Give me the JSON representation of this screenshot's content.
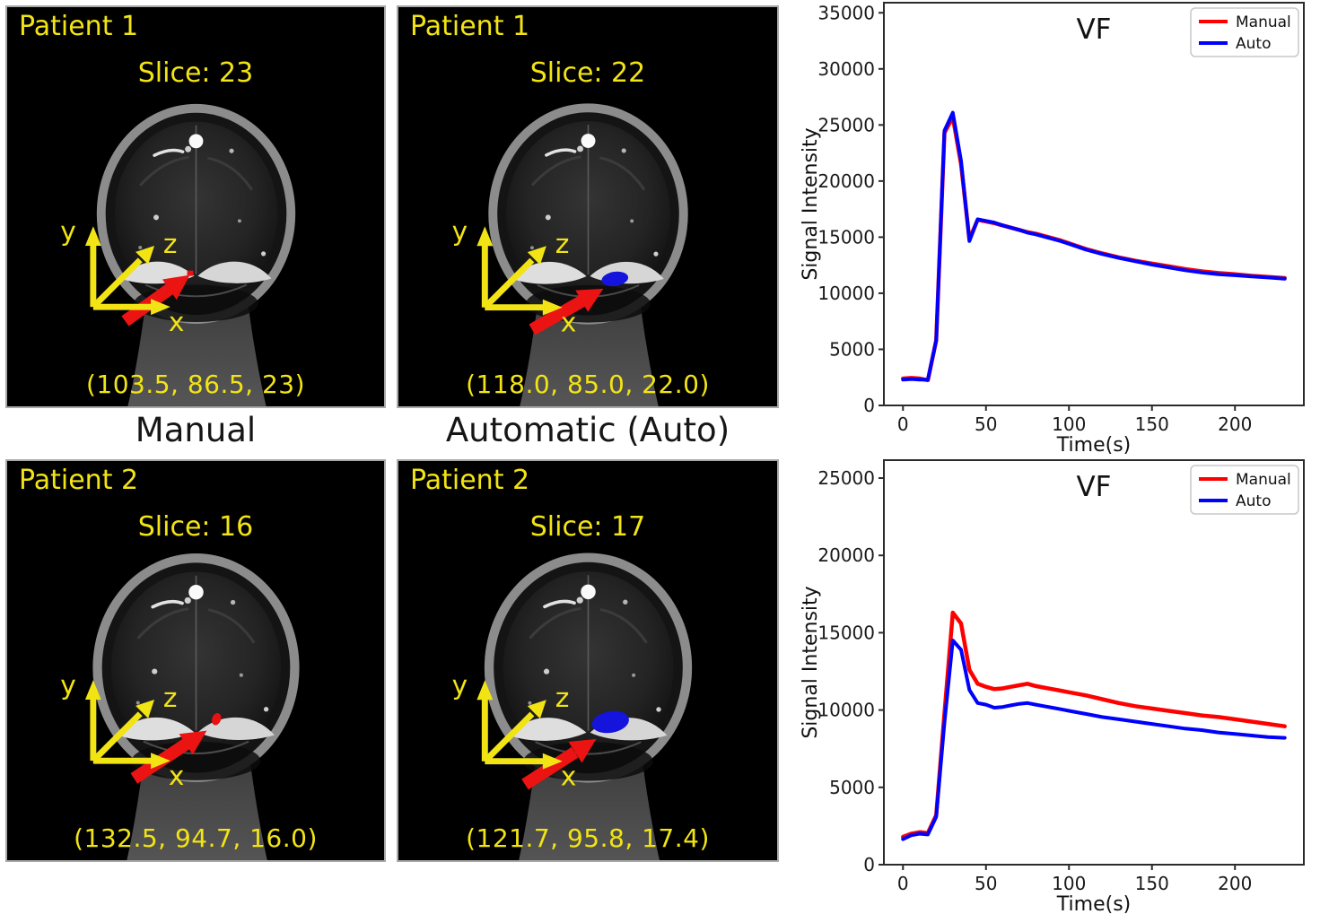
{
  "figure_type": "mri_ventricle_segmentation_comparison",
  "panels": [
    {
      "patient_label": "Patient 1",
      "slice_label": "Slice: 23",
      "coordinates": "(103.5, 86.5, 23)",
      "marker": "manual-red-dot"
    },
    {
      "patient_label": "Patient 1",
      "slice_label": "Slice: 22",
      "coordinates": "(118.0, 85.0, 22.0)",
      "marker": "auto-blue-region"
    },
    {
      "patient_label": "Patient 2",
      "slice_label": "Slice: 16",
      "coordinates": "(132.5, 94.7, 16.0)",
      "marker": "manual-red-dot"
    },
    {
      "patient_label": "Patient 2",
      "slice_label": "Slice: 17",
      "coordinates": "(121.7, 95.8, 17.4)",
      "marker": "auto-blue-region"
    }
  ],
  "method_labels": {
    "manual": "Manual",
    "automatic": "Automatic (Auto)"
  },
  "axis_tripod": {
    "x_label": "x",
    "y_label": "y",
    "z_label": "z"
  },
  "colors": {
    "annotation_yellow": "#f2e414",
    "arrow_red": "#ec1313",
    "marker_red": "#e81010",
    "marker_blue": "#1414dd",
    "manual_line": "#ff0000",
    "auto_line": "#0000ff",
    "axis_frame": "#2b2b2b"
  },
  "chart_data": [
    {
      "type": "line",
      "title": "VF",
      "xlabel": "Time(s)",
      "ylabel": "Signal Intensity",
      "x": [
        0,
        5,
        10,
        15,
        20,
        25,
        30,
        35,
        40,
        45,
        50,
        55,
        60,
        65,
        70,
        75,
        80,
        85,
        90,
        95,
        100,
        110,
        120,
        130,
        140,
        150,
        160,
        170,
        180,
        190,
        200,
        210,
        220,
        230
      ],
      "series": [
        {
          "name": "Manual",
          "color": "#ff0000",
          "values": [
            2400,
            2450,
            2400,
            2250,
            5800,
            24300,
            25700,
            21500,
            14800,
            16550,
            16400,
            16250,
            16050,
            15850,
            15650,
            15450,
            15300,
            15100,
            14900,
            14700,
            14450,
            13950,
            13550,
            13200,
            12900,
            12650,
            12400,
            12150,
            11950,
            11800,
            11700,
            11550,
            11450,
            11350
          ]
        },
        {
          "name": "Auto",
          "color": "#0000ff",
          "values": [
            2300,
            2350,
            2300,
            2300,
            5800,
            24500,
            26100,
            21800,
            14650,
            16600,
            16450,
            16300,
            16050,
            15850,
            15650,
            15400,
            15250,
            15050,
            14850,
            14650,
            14400,
            13900,
            13500,
            13150,
            12850,
            12550,
            12300,
            12050,
            11850,
            11700,
            11600,
            11500,
            11400,
            11300
          ]
        }
      ],
      "xticks": [
        0,
        50,
        100,
        150,
        200
      ],
      "yticks": [
        0,
        5000,
        10000,
        15000,
        20000,
        25000,
        30000,
        35000
      ],
      "xlim": [
        -11.5,
        241.5
      ],
      "ylim": [
        0,
        35900
      ],
      "legend": {
        "position": "upper right",
        "entries": [
          "Manual",
          "Auto"
        ]
      },
      "grid": false
    },
    {
      "type": "line",
      "title": "VF",
      "xlabel": "Time(s)",
      "ylabel": "Signal Intensity",
      "x": [
        0,
        5,
        10,
        15,
        20,
        25,
        30,
        35,
        40,
        45,
        50,
        55,
        60,
        65,
        70,
        75,
        80,
        85,
        90,
        95,
        100,
        110,
        120,
        130,
        140,
        150,
        160,
        170,
        180,
        190,
        200,
        210,
        220,
        230
      ],
      "series": [
        {
          "name": "Manual",
          "color": "#ff0000",
          "values": [
            1800,
            2000,
            2100,
            2050,
            3200,
            9800,
            16300,
            15600,
            12600,
            11700,
            11500,
            11350,
            11400,
            11500,
            11600,
            11700,
            11550,
            11450,
            11350,
            11250,
            11150,
            10950,
            10700,
            10450,
            10250,
            10100,
            9950,
            9800,
            9650,
            9550,
            9400,
            9250,
            9100,
            8950
          ]
        },
        {
          "name": "Auto",
          "color": "#0000ff",
          "values": [
            1650,
            1900,
            2000,
            1950,
            3100,
            9200,
            14500,
            13900,
            11300,
            10450,
            10350,
            10150,
            10200,
            10300,
            10400,
            10450,
            10350,
            10250,
            10150,
            10050,
            9950,
            9750,
            9550,
            9400,
            9250,
            9100,
            8950,
            8800,
            8700,
            8550,
            8450,
            8350,
            8250,
            8200
          ]
        }
      ],
      "xticks": [
        0,
        50,
        100,
        150,
        200
      ],
      "yticks": [
        0,
        5000,
        10000,
        15000,
        20000,
        25000
      ],
      "xlim": [
        -11.5,
        241.5
      ],
      "ylim": [
        0,
        26160
      ],
      "legend": {
        "position": "upper right",
        "entries": [
          "Manual",
          "Auto"
        ]
      },
      "grid": false
    }
  ]
}
